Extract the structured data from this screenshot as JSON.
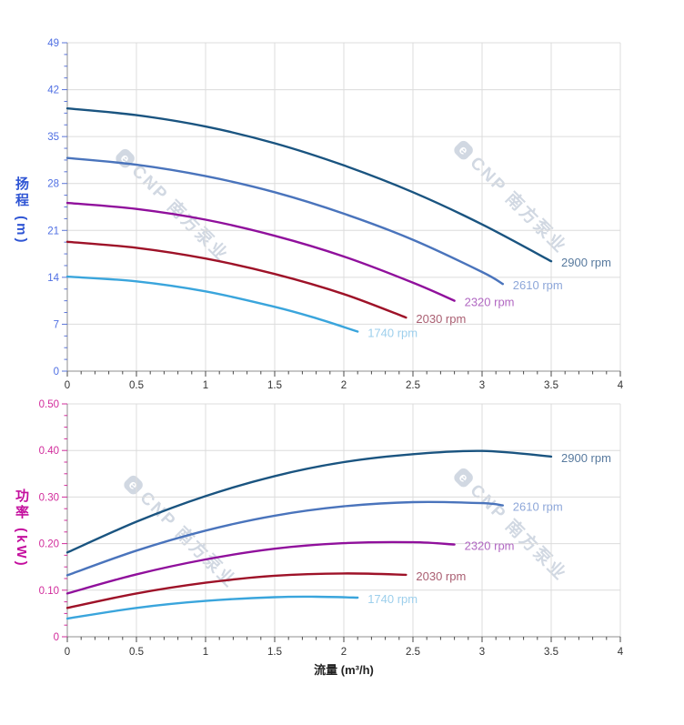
{
  "xlabel": "流量 (m³/h)",
  "watermark": {
    "logo_letter": "e",
    "text": "CNP 南方泵业",
    "color": "#c9d2de"
  },
  "palette": {
    "grid": "#dcdcdc",
    "axis_line": "#8f8f8f",
    "x_tick": "#4a4a4a",
    "x_tick_label": "#333333"
  },
  "chart_data": [
    {
      "type": "line",
      "title": "",
      "ylabel": "扬程 (m)",
      "ylabel_color": "#2f55d4",
      "tick_label_color": "#4f6fe3",
      "tick_color": "#5a74d8",
      "xlim": [
        0,
        4
      ],
      "ylim": [
        0,
        49
      ],
      "grid": true,
      "legend_position": "end-of-line",
      "xticks": {
        "values": [
          0,
          0.5,
          1,
          1.5,
          2,
          2.5,
          3,
          3.5,
          4
        ],
        "labels": [
          "0",
          "0.5",
          "1",
          "1.5",
          "2",
          "2.5",
          "3",
          "3.5",
          "4"
        ]
      },
      "yticks": {
        "values": [
          49,
          42,
          35,
          28,
          21,
          14,
          7,
          0
        ],
        "labels": [
          "49",
          "42",
          "35",
          "28",
          "21",
          "14",
          "7",
          "0"
        ]
      },
      "x_minor_step": 0.1,
      "y_minor_step": 1.75,
      "series": [
        {
          "name": "2900 rpm",
          "color": "#1a5480",
          "label_color": "#587a9e",
          "points": [
            [
              0,
              39.2
            ],
            [
              0.5,
              38.2
            ],
            [
              1,
              36.5
            ],
            [
              1.5,
              34.0
            ],
            [
              2,
              30.7
            ],
            [
              2.5,
              26.7
            ],
            [
              3,
              21.9
            ],
            [
              3.5,
              16.4
            ]
          ]
        },
        {
          "name": "2610 rpm",
          "color": "#4a74bc",
          "label_color": "#8ea7d9",
          "points": [
            [
              0,
              31.8
            ],
            [
              0.5,
              30.8
            ],
            [
              1,
              29.1
            ],
            [
              1.5,
              26.7
            ],
            [
              2,
              23.5
            ],
            [
              2.5,
              19.6
            ],
            [
              3,
              14.8
            ],
            [
              3.15,
              13.0
            ]
          ]
        },
        {
          "name": "2320 rpm",
          "color": "#90109c",
          "label_color": "#b168c2",
          "points": [
            [
              0,
              25.1
            ],
            [
              0.5,
              24.2
            ],
            [
              1,
              22.6
            ],
            [
              1.5,
              20.2
            ],
            [
              2,
              17.1
            ],
            [
              2.5,
              13.2
            ],
            [
              2.8,
              10.5
            ]
          ]
        },
        {
          "name": "2030 rpm",
          "color": "#9e1228",
          "label_color": "#aa5f72",
          "points": [
            [
              0,
              19.3
            ],
            [
              0.5,
              18.4
            ],
            [
              1,
              16.8
            ],
            [
              1.5,
              14.5
            ],
            [
              2,
              11.5
            ],
            [
              2.45,
              8.0
            ]
          ]
        },
        {
          "name": "1740 rpm",
          "color": "#3aa5dc",
          "label_color": "#9dcfec",
          "points": [
            [
              0,
              14.1
            ],
            [
              0.5,
              13.4
            ],
            [
              1,
              11.9
            ],
            [
              1.5,
              9.6
            ],
            [
              1.8,
              7.9
            ],
            [
              2.1,
              5.9
            ]
          ]
        }
      ]
    },
    {
      "type": "line",
      "title": "",
      "ylabel": "功率 (kW)",
      "ylabel_color": "#c40f9e",
      "tick_label_color": "#d12b9b",
      "tick_color": "#d12b9b",
      "xlim": [
        0,
        4
      ],
      "ylim": [
        0,
        0.5
      ],
      "grid": true,
      "legend_position": "end-of-line",
      "xticks": {
        "values": [
          0,
          0.5,
          1,
          1.5,
          2,
          2.5,
          3,
          3.5,
          4
        ],
        "labels": [
          "0",
          "0.5",
          "1",
          "1.5",
          "2",
          "2.5",
          "3",
          "3.5",
          "4"
        ]
      },
      "yticks": {
        "values": [
          0.5,
          0.4,
          0.3,
          0.2,
          0.1,
          0
        ],
        "labels": [
          "0.50",
          "0.40",
          "0.30",
          "0.20",
          "0.10",
          "0"
        ]
      },
      "x_minor_step": 0.1,
      "y_minor_step": 0.025,
      "series": [
        {
          "name": "2900 rpm",
          "color": "#1a5480",
          "label_color": "#587a9e",
          "points": [
            [
              0,
              0.181
            ],
            [
              0.5,
              0.247
            ],
            [
              1,
              0.302
            ],
            [
              1.5,
              0.345
            ],
            [
              2,
              0.375
            ],
            [
              2.5,
              0.392
            ],
            [
              3,
              0.399
            ],
            [
              3.5,
              0.387
            ]
          ]
        },
        {
          "name": "2610 rpm",
          "color": "#4a74bc",
          "label_color": "#8ea7d9",
          "points": [
            [
              0,
              0.132
            ],
            [
              0.5,
              0.185
            ],
            [
              1,
              0.228
            ],
            [
              1.5,
              0.26
            ],
            [
              2,
              0.28
            ],
            [
              2.5,
              0.289
            ],
            [
              3,
              0.287
            ],
            [
              3.15,
              0.282
            ]
          ]
        },
        {
          "name": "2320 rpm",
          "color": "#90109c",
          "label_color": "#b168c2",
          "points": [
            [
              0,
              0.093
            ],
            [
              0.5,
              0.134
            ],
            [
              1,
              0.166
            ],
            [
              1.5,
              0.189
            ],
            [
              2,
              0.201
            ],
            [
              2.5,
              0.203
            ],
            [
              2.8,
              0.198
            ]
          ]
        },
        {
          "name": "2030 rpm",
          "color": "#9e1228",
          "label_color": "#aa5f72",
          "points": [
            [
              0,
              0.062
            ],
            [
              0.5,
              0.093
            ],
            [
              1,
              0.116
            ],
            [
              1.5,
              0.131
            ],
            [
              2,
              0.136
            ],
            [
              2.45,
              0.133
            ]
          ]
        },
        {
          "name": "1740 rpm",
          "color": "#3aa5dc",
          "label_color": "#9dcfec",
          "points": [
            [
              0,
              0.039
            ],
            [
              0.5,
              0.062
            ],
            [
              1,
              0.077
            ],
            [
              1.5,
              0.085
            ],
            [
              1.8,
              0.086
            ],
            [
              2.1,
              0.084
            ]
          ]
        }
      ]
    }
  ]
}
